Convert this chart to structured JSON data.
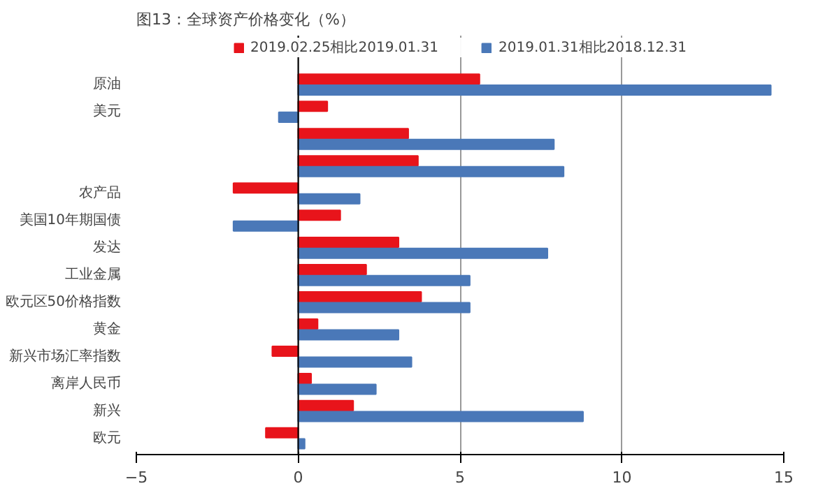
{
  "chart_data": {
    "type": "bar",
    "orientation": "horizontal",
    "title": "图13：全球资产价格变化（%）",
    "categories": [
      "原油",
      "美元",
      null,
      null,
      "农产品",
      "美国10年期国债",
      "发达",
      "工业金属",
      "欧元区50价格指数",
      "黄金",
      "新兴市场汇率指数",
      "离岸人民币",
      "新兴",
      "欧元"
    ],
    "series": [
      {
        "name": "2019.02.25相比2019.01.31",
        "color": "#e8141b",
        "values": [
          5.6,
          0.9,
          3.4,
          3.7,
          -2.0,
          1.3,
          3.1,
          2.1,
          3.8,
          0.6,
          -0.8,
          0.4,
          1.7,
          -1.0
        ]
      },
      {
        "name": "2019.01.31相比2018.12.31",
        "color": "#4a78b8",
        "values": [
          14.6,
          -0.6,
          7.9,
          8.2,
          1.9,
          -2.0,
          7.7,
          5.3,
          5.3,
          3.1,
          3.5,
          2.4,
          8.8,
          0.2
        ]
      }
    ],
    "xlim": [
      -5,
      15
    ],
    "xticks": [
      -5,
      0,
      5,
      10,
      15
    ],
    "grid": "x",
    "legend": "top"
  }
}
